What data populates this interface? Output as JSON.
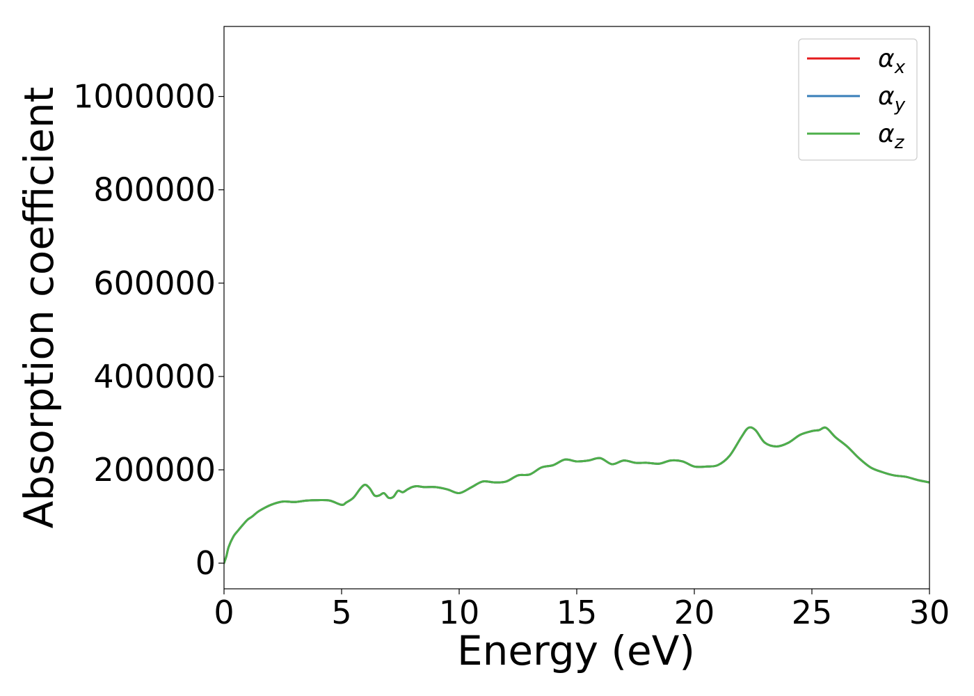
{
  "chart_data": {
    "type": "line",
    "title": "",
    "xlabel": "Energy (eV)",
    "ylabel": "Absorption coefficient",
    "xlim": [
      0,
      30
    ],
    "ylim": [
      -55000,
      1150000
    ],
    "xticks": [
      0,
      5,
      10,
      15,
      20,
      25,
      30
    ],
    "yticks": [
      0,
      200000,
      400000,
      600000,
      800000,
      1000000
    ],
    "grid": false,
    "legend_position": "top-right",
    "series": [
      {
        "name": "α",
        "subscript": "x",
        "color": "#e41a1c",
        "x": [
          0,
          0.1,
          0.2,
          0.4,
          0.6,
          0.8,
          1.0,
          1.2,
          1.5,
          2.0,
          2.5,
          3.0,
          3.5,
          4.0,
          4.5,
          5.0,
          5.2,
          5.5,
          5.8,
          6.0,
          6.2,
          6.4,
          6.6,
          6.8,
          7.0,
          7.2,
          7.4,
          7.6,
          7.8,
          8.0,
          8.2,
          8.5,
          9.0,
          9.5,
          10.0,
          10.5,
          11.0,
          11.5,
          12.0,
          12.5,
          13.0,
          13.5,
          14.0,
          14.5,
          15.0,
          15.5,
          16.0,
          16.5,
          17.0,
          17.5,
          18.0,
          18.5,
          19.0,
          19.5,
          20.0,
          20.5,
          21.0,
          21.5,
          22.0,
          22.3,
          22.6,
          23.0,
          23.5,
          24.0,
          24.5,
          25.0,
          25.3,
          25.6,
          26.0,
          26.5,
          27.0,
          27.5,
          28.0,
          28.5,
          29.0,
          29.5,
          30.0
        ],
        "y": [
          0,
          15000,
          35000,
          57000,
          70000,
          82000,
          93000,
          100000,
          112000,
          125000,
          132000,
          131000,
          134000,
          135000,
          134000,
          125000,
          130000,
          140000,
          160000,
          168000,
          160000,
          145000,
          145000,
          150000,
          140000,
          142000,
          155000,
          152000,
          158000,
          163000,
          165000,
          163000,
          163000,
          158000,
          150000,
          162000,
          175000,
          173000,
          175000,
          188000,
          190000,
          205000,
          210000,
          222000,
          218000,
          220000,
          225000,
          212000,
          220000,
          215000,
          215000,
          213000,
          220000,
          218000,
          207000,
          207000,
          210000,
          230000,
          270000,
          290000,
          285000,
          258000,
          250000,
          258000,
          275000,
          283000,
          285000,
          290000,
          270000,
          250000,
          225000,
          205000,
          195000,
          188000,
          185000,
          178000,
          173000
        ]
      },
      {
        "name": "α",
        "subscript": "y",
        "color": "#377eb8",
        "x": [
          0,
          0.1,
          0.2,
          0.4,
          0.6,
          0.8,
          1.0,
          1.2,
          1.5,
          2.0,
          2.5,
          3.0,
          3.5,
          4.0,
          4.5,
          5.0,
          5.2,
          5.5,
          5.8,
          6.0,
          6.2,
          6.4,
          6.6,
          6.8,
          7.0,
          7.2,
          7.4,
          7.6,
          7.8,
          8.0,
          8.2,
          8.5,
          9.0,
          9.5,
          10.0,
          10.5,
          11.0,
          11.5,
          12.0,
          12.5,
          13.0,
          13.5,
          14.0,
          14.5,
          15.0,
          15.5,
          16.0,
          16.5,
          17.0,
          17.5,
          18.0,
          18.5,
          19.0,
          19.5,
          20.0,
          20.5,
          21.0,
          21.5,
          22.0,
          22.3,
          22.6,
          23.0,
          23.5,
          24.0,
          24.5,
          25.0,
          25.3,
          25.6,
          26.0,
          26.5,
          27.0,
          27.5,
          28.0,
          28.5,
          29.0,
          29.5,
          30.0
        ],
        "y": [
          0,
          15000,
          35000,
          57000,
          70000,
          82000,
          93000,
          100000,
          112000,
          125000,
          132000,
          131000,
          134000,
          135000,
          134000,
          125000,
          130000,
          140000,
          160000,
          168000,
          160000,
          145000,
          145000,
          150000,
          140000,
          142000,
          155000,
          152000,
          158000,
          163000,
          165000,
          163000,
          163000,
          158000,
          150000,
          162000,
          175000,
          173000,
          175000,
          188000,
          190000,
          205000,
          210000,
          222000,
          218000,
          220000,
          225000,
          212000,
          220000,
          215000,
          215000,
          213000,
          220000,
          218000,
          207000,
          207000,
          210000,
          230000,
          270000,
          290000,
          285000,
          258000,
          250000,
          258000,
          275000,
          283000,
          285000,
          290000,
          270000,
          250000,
          225000,
          205000,
          195000,
          188000,
          185000,
          178000,
          173000
        ]
      },
      {
        "name": "α",
        "subscript": "z",
        "color": "#4daf4a",
        "x": [
          0,
          0.1,
          0.2,
          0.4,
          0.6,
          0.8,
          1.0,
          1.2,
          1.5,
          2.0,
          2.5,
          3.0,
          3.5,
          4.0,
          4.5,
          5.0,
          5.2,
          5.5,
          5.8,
          6.0,
          6.2,
          6.4,
          6.6,
          6.8,
          7.0,
          7.2,
          7.4,
          7.6,
          7.8,
          8.0,
          8.2,
          8.5,
          9.0,
          9.5,
          10.0,
          10.5,
          11.0,
          11.5,
          12.0,
          12.5,
          13.0,
          13.5,
          14.0,
          14.5,
          15.0,
          15.5,
          16.0,
          16.5,
          17.0,
          17.5,
          18.0,
          18.5,
          19.0,
          19.5,
          20.0,
          20.5,
          21.0,
          21.5,
          22.0,
          22.3,
          22.6,
          23.0,
          23.5,
          24.0,
          24.5,
          25.0,
          25.3,
          25.6,
          26.0,
          26.5,
          27.0,
          27.5,
          28.0,
          28.5,
          29.0,
          29.5,
          30.0
        ],
        "y": [
          0,
          15000,
          35000,
          57000,
          70000,
          82000,
          93000,
          100000,
          112000,
          125000,
          132000,
          131000,
          134000,
          135000,
          134000,
          125000,
          130000,
          140000,
          160000,
          168000,
          160000,
          145000,
          145000,
          150000,
          140000,
          142000,
          155000,
          152000,
          158000,
          163000,
          165000,
          163000,
          163000,
          158000,
          150000,
          162000,
          175000,
          173000,
          175000,
          188000,
          190000,
          205000,
          210000,
          222000,
          218000,
          220000,
          225000,
          212000,
          220000,
          215000,
          215000,
          213000,
          220000,
          218000,
          207000,
          207000,
          210000,
          230000,
          270000,
          290000,
          285000,
          258000,
          250000,
          258000,
          275000,
          283000,
          285000,
          290000,
          270000,
          250000,
          225000,
          205000,
          195000,
          188000,
          185000,
          178000,
          173000
        ]
      }
    ]
  }
}
